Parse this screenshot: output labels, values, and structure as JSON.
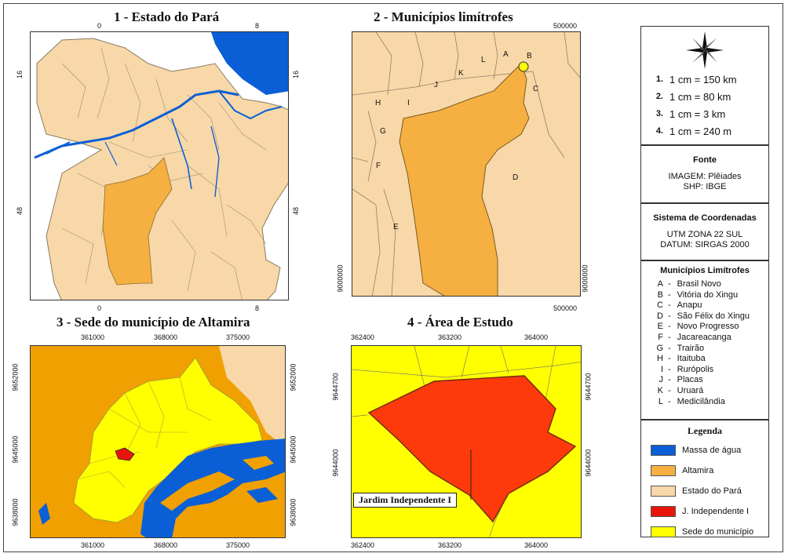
{
  "titles": {
    "p1": "1 - Estado do Pará",
    "p2": "2 - Municípios limítrofes",
    "p3": "3 - Sede do município de Altamira",
    "p4": "4 - Área de Estudo"
  },
  "panel1_ticks": {
    "top0": "0",
    "top8": "8",
    "bot0": "0",
    "bot8": "8",
    "left16": "16",
    "left48": "48",
    "right16": "16",
    "right48": "48"
  },
  "panel2_ticks": {
    "top": "500000",
    "bottom": "500000",
    "left": "9000000",
    "right": "9000000"
  },
  "panel2_labels": {
    "A": "A",
    "B": "B",
    "C": "C",
    "D": "D",
    "E": "E",
    "F": "F",
    "G": "G",
    "H": "H",
    "I": "I",
    "J": "J",
    "K": "K",
    "L": "L"
  },
  "panel3_ticks": {
    "top": [
      "361000",
      "368000",
      "375000"
    ],
    "bottom": [
      "361000",
      "368000",
      "375000"
    ],
    "left": [
      "9652000",
      "9645000",
      "9638000"
    ],
    "right": [
      "9652000",
      "9645000",
      "9638000"
    ]
  },
  "panel4_ticks": {
    "top": [
      "362400",
      "363200",
      "364000"
    ],
    "bottom": [
      "362400",
      "363200",
      "364000"
    ],
    "left": [
      "9644700",
      "9644000"
    ],
    "right": [
      "9644700",
      "9644000"
    ]
  },
  "panel4_label": "Jardim Independente I",
  "scales": [
    {
      "num": "1.",
      "text": "1 cm = 150 km"
    },
    {
      "num": "2.",
      "text": "1 cm = 80 km"
    },
    {
      "num": "3.",
      "text": "1 cm = 3 km"
    },
    {
      "num": "4.",
      "text": "1 cm = 240 m"
    }
  ],
  "fonte": {
    "title": "Fonte",
    "line1": "IMAGEM: Plêiades",
    "line2": "SHP: IBGE"
  },
  "coords": {
    "title": "Sistema de Coordenadas",
    "line1": "UTM ZONA 22 SUL",
    "line2": "DATUM: SIRGAS 2000"
  },
  "municipios": {
    "title": "Municípios Limítrofes",
    "items": [
      {
        "code": "A",
        "name": "Brasil Novo"
      },
      {
        "code": "B",
        "name": "Vitória do Xingu"
      },
      {
        "code": "C",
        "name": "Anapu"
      },
      {
        "code": "D",
        "name": "São Félix do Xingu"
      },
      {
        "code": "E",
        "name": "Novo Progresso"
      },
      {
        "code": "F",
        "name": "Jacareacanga"
      },
      {
        "code": "G",
        "name": "Trairão"
      },
      {
        "code": "H",
        "name": "Itaituba"
      },
      {
        "code": "I",
        "name": "Rurópolis"
      },
      {
        "code": "J",
        "name": "Placas"
      },
      {
        "code": "K",
        "name": "Uruará"
      },
      {
        "code": "L",
        "name": "Medicilândia"
      }
    ]
  },
  "legenda": {
    "title": "Legenda",
    "items": [
      {
        "label": "Massa de água",
        "color": "#0a5fd6"
      },
      {
        "label": "Altamira",
        "color": "#f5b041"
      },
      {
        "label": "Estado do Pará",
        "color": "#f8d8a8"
      },
      {
        "label": "J. Independente I",
        "color": "#e8150c"
      },
      {
        "label": "Sede do município",
        "color": "#ffff00"
      }
    ]
  },
  "colors": {
    "water": "#0a5fd6",
    "altamira": "#f5b041",
    "para": "#f8d8a8",
    "jardim": "#ff3a0a",
    "sede": "#ffff00",
    "dark_orange": "#f0a000"
  }
}
